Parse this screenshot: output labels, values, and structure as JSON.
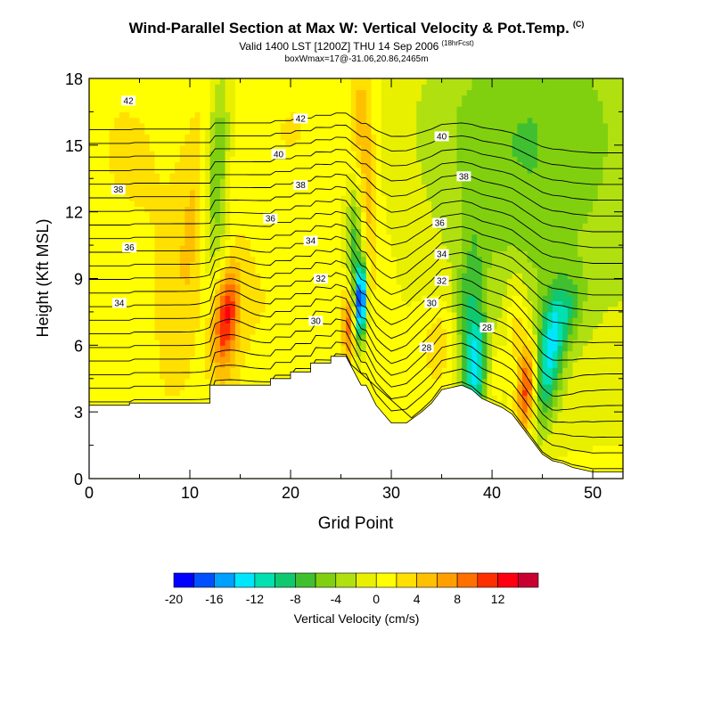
{
  "header": {
    "title": "Wind-Parallel Section at Max W: Vertical Velocity & Pot.Temp.",
    "copyright": "(C)",
    "subtitle": "Valid 1400 LST [1200Z] THU 14 Sep 2006",
    "forecast_tag": "(18hrFcst)",
    "boxline": "boxWmax=17@-31.06,20.86,2465m"
  },
  "chart_data": {
    "type": "heatmap",
    "xlabel": "Grid Point",
    "ylabel": "Height (Kft MSL)",
    "xlim": [
      0,
      53
    ],
    "ylim": [
      0,
      18
    ],
    "x_ticks": [
      "0",
      "10",
      "20",
      "30",
      "40",
      "50"
    ],
    "y_ticks": [
      "0",
      "3",
      "6",
      "9",
      "12",
      "15",
      "18"
    ],
    "colorbar": {
      "label": "Vertical Velocity (cm/s)",
      "levels": [
        -20,
        -18,
        -16,
        -14,
        -12,
        -10,
        -8,
        -6,
        -4,
        -2,
        0,
        2,
        4,
        6,
        8,
        10,
        12,
        14
      ],
      "tick_labels": [
        "-20",
        "-16",
        "-12",
        "-8",
        "-4",
        "0",
        "4",
        "8",
        "12"
      ],
      "colors": [
        "#0000ff",
        "#0050ff",
        "#00a0ff",
        "#00e6ff",
        "#00e0b0",
        "#10c870",
        "#40c030",
        "#80d010",
        "#b0e010",
        "#e8f000",
        "#ffff00",
        "#ffe000",
        "#ffc000",
        "#ffa000",
        "#ff7000",
        "#ff3000",
        "#ff0010",
        "#c80030"
      ]
    },
    "terrain_kft": [
      [
        0,
        3.3
      ],
      [
        4,
        3.3
      ],
      [
        4,
        3.4
      ],
      [
        12,
        3.4
      ],
      [
        12,
        4.2
      ],
      [
        18,
        4.2
      ],
      [
        18,
        4.5
      ],
      [
        20,
        4.5
      ],
      [
        20,
        4.8
      ],
      [
        22,
        4.8
      ],
      [
        22,
        5.2
      ],
      [
        24,
        5.2
      ],
      [
        24,
        5.5
      ],
      [
        25.5,
        5.5
      ],
      [
        27,
        4.2
      ],
      [
        27.5,
        4.2
      ],
      [
        28.5,
        3.3
      ],
      [
        30,
        2.5
      ],
      [
        31,
        2.5
      ],
      [
        31.5,
        2.5
      ],
      [
        33,
        3.0
      ],
      [
        34,
        3.4
      ],
      [
        35,
        4.0
      ],
      [
        37,
        4.2
      ],
      [
        38,
        4.0
      ],
      [
        39,
        3.6
      ],
      [
        40,
        3.4
      ],
      [
        41,
        3.2
      ],
      [
        42,
        2.9
      ],
      [
        43,
        2.3
      ],
      [
        44,
        1.7
      ],
      [
        45,
        1.1
      ],
      [
        46,
        0.8
      ],
      [
        47,
        0.7
      ],
      [
        48,
        0.5
      ],
      [
        50,
        0.3
      ],
      [
        53,
        0.3
      ]
    ],
    "updrafts": [
      {
        "x": 13.5,
        "y": 7.5,
        "w_cm_s": 14
      },
      {
        "x": 43.5,
        "y": 4.0,
        "w_cm_s": 13
      },
      {
        "x": 25.8,
        "y": 7.0,
        "w_cm_s": 10
      },
      {
        "x": 26.8,
        "y": 16.0,
        "w_cm_s": 6
      }
    ],
    "downdrafts": [
      {
        "x": 27.0,
        "y": 8.0,
        "w_cm_s": -20
      },
      {
        "x": 38.5,
        "y": 5.0,
        "w_cm_s": -12
      },
      {
        "x": 45.5,
        "y": 5.0,
        "w_cm_s": -10
      },
      {
        "x": 12.5,
        "y": 14.5,
        "w_cm_s": -8
      }
    ],
    "theta_contour_labels": [
      {
        "text": "42",
        "x": 3.9,
        "y": 17.0
      },
      {
        "text": "42",
        "x": 21.0,
        "y": 16.2
      },
      {
        "text": "40",
        "x": 18.8,
        "y": 14.6
      },
      {
        "text": "40",
        "x": 35.0,
        "y": 15.4
      },
      {
        "text": "38",
        "x": 2.9,
        "y": 13.0
      },
      {
        "text": "38",
        "x": 21.0,
        "y": 13.2
      },
      {
        "text": "38",
        "x": 37.2,
        "y": 13.6
      },
      {
        "text": "36",
        "x": 18.0,
        "y": 11.7
      },
      {
        "text": "36",
        "x": 4.0,
        "y": 10.4
      },
      {
        "text": "36",
        "x": 34.8,
        "y": 11.5
      },
      {
        "text": "34",
        "x": 22.0,
        "y": 10.7
      },
      {
        "text": "34",
        "x": 35.0,
        "y": 10.1
      },
      {
        "text": "34",
        "x": 3.0,
        "y": 7.9
      },
      {
        "text": "32",
        "x": 23.0,
        "y": 9.0
      },
      {
        "text": "32",
        "x": 35.0,
        "y": 8.9
      },
      {
        "text": "30",
        "x": 22.5,
        "y": 7.1
      },
      {
        "text": "30",
        "x": 34.0,
        "y": 7.9
      },
      {
        "text": "28",
        "x": 33.5,
        "y": 5.9
      },
      {
        "text": "28",
        "x": 39.5,
        "y": 6.8
      }
    ]
  }
}
